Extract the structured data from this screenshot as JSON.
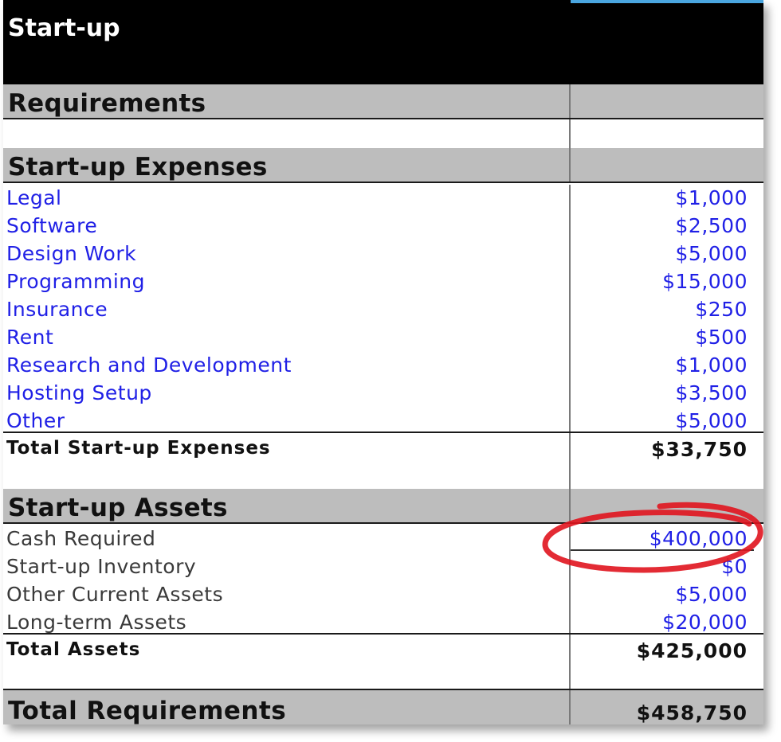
{
  "title": "Start-up",
  "requirements_heading": "Requirements",
  "expenses": {
    "heading": "Start-up Expenses",
    "items": [
      {
        "label": "Legal",
        "value": "$1,000"
      },
      {
        "label": "Software",
        "value": "$2,500"
      },
      {
        "label": "Design Work",
        "value": "$5,000"
      },
      {
        "label": "Programming",
        "value": "$15,000"
      },
      {
        "label": "Insurance",
        "value": "$250"
      },
      {
        "label": "Rent",
        "value": "$500"
      },
      {
        "label": "Research and Development",
        "value": "$1,000"
      },
      {
        "label": "Hosting Setup",
        "value": "$3,500"
      },
      {
        "label": "Other",
        "value": "$5,000"
      }
    ],
    "total_label": "Total Start-up Expenses",
    "total_value": "$33,750"
  },
  "assets": {
    "heading": "Start-up Assets",
    "items": [
      {
        "label": "Cash Required",
        "value": "$400,000"
      },
      {
        "label": "Start-up Inventory",
        "value": "$0"
      },
      {
        "label": "Other Current Assets",
        "value": "$5,000"
      },
      {
        "label": "Long-term Assets",
        "value": "$20,000"
      }
    ],
    "total_label": "Total Assets",
    "total_value": "$425,000"
  },
  "grand_total": {
    "label": "Total Requirements",
    "value": "$458,750"
  },
  "colors": {
    "input_value": "#2020e6",
    "section_bg": "#bdbdbd",
    "header_bg": "#000000",
    "highlight_ring": "#e0141e"
  }
}
